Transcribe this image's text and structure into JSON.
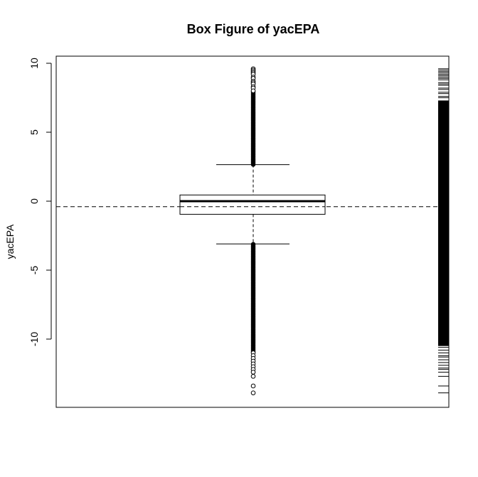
{
  "chart_data": {
    "type": "box",
    "title": "Box Figure of yacEPA",
    "ylabel": "yacEPA",
    "xlabel": "",
    "ylim": [
      -14.3,
      10.2
    ],
    "yticks": [
      10,
      5,
      0,
      -5,
      -10
    ],
    "ytick_labels": [
      "10",
      "5",
      "0",
      "-5",
      "-10"
    ],
    "box": {
      "whisker_low": -3.1,
      "q1": -0.95,
      "median": 0.0,
      "q3": 0.45,
      "whisker_high": 2.65
    },
    "mean_line": -0.4,
    "outliers_high_range": [
      2.65,
      9.6
    ],
    "outliers_low_range": [
      -13.9,
      -3.1
    ],
    "outliers_sample": [
      9.6,
      9.5,
      9.4,
      9.3,
      9.2,
      9.0,
      8.9,
      8.7,
      8.6,
      8.5,
      8.3,
      8.2,
      8.0,
      -11.0,
      -11.2,
      -11.4,
      -11.6,
      -11.8,
      -12.0,
      -12.2,
      -12.4,
      -12.7,
      -13.4,
      -13.9
    ],
    "rug_dense_range": [
      -10.5,
      7.3
    ],
    "rug_sparse_values": [
      9.6,
      9.5,
      9.4,
      9.3,
      9.2,
      9.1,
      9.0,
      8.9,
      8.8,
      8.6,
      8.5,
      8.4,
      8.2,
      8.1,
      7.9,
      7.8,
      7.6,
      7.5,
      -10.6,
      -10.8,
      -11.0,
      -11.2,
      -11.3,
      -11.5,
      -11.7,
      -11.9,
      -12.1,
      -12.2,
      -12.4,
      -12.7,
      -13.4,
      -13.9
    ],
    "colors": {
      "line": "#000000",
      "background": "#ffffff"
    }
  }
}
